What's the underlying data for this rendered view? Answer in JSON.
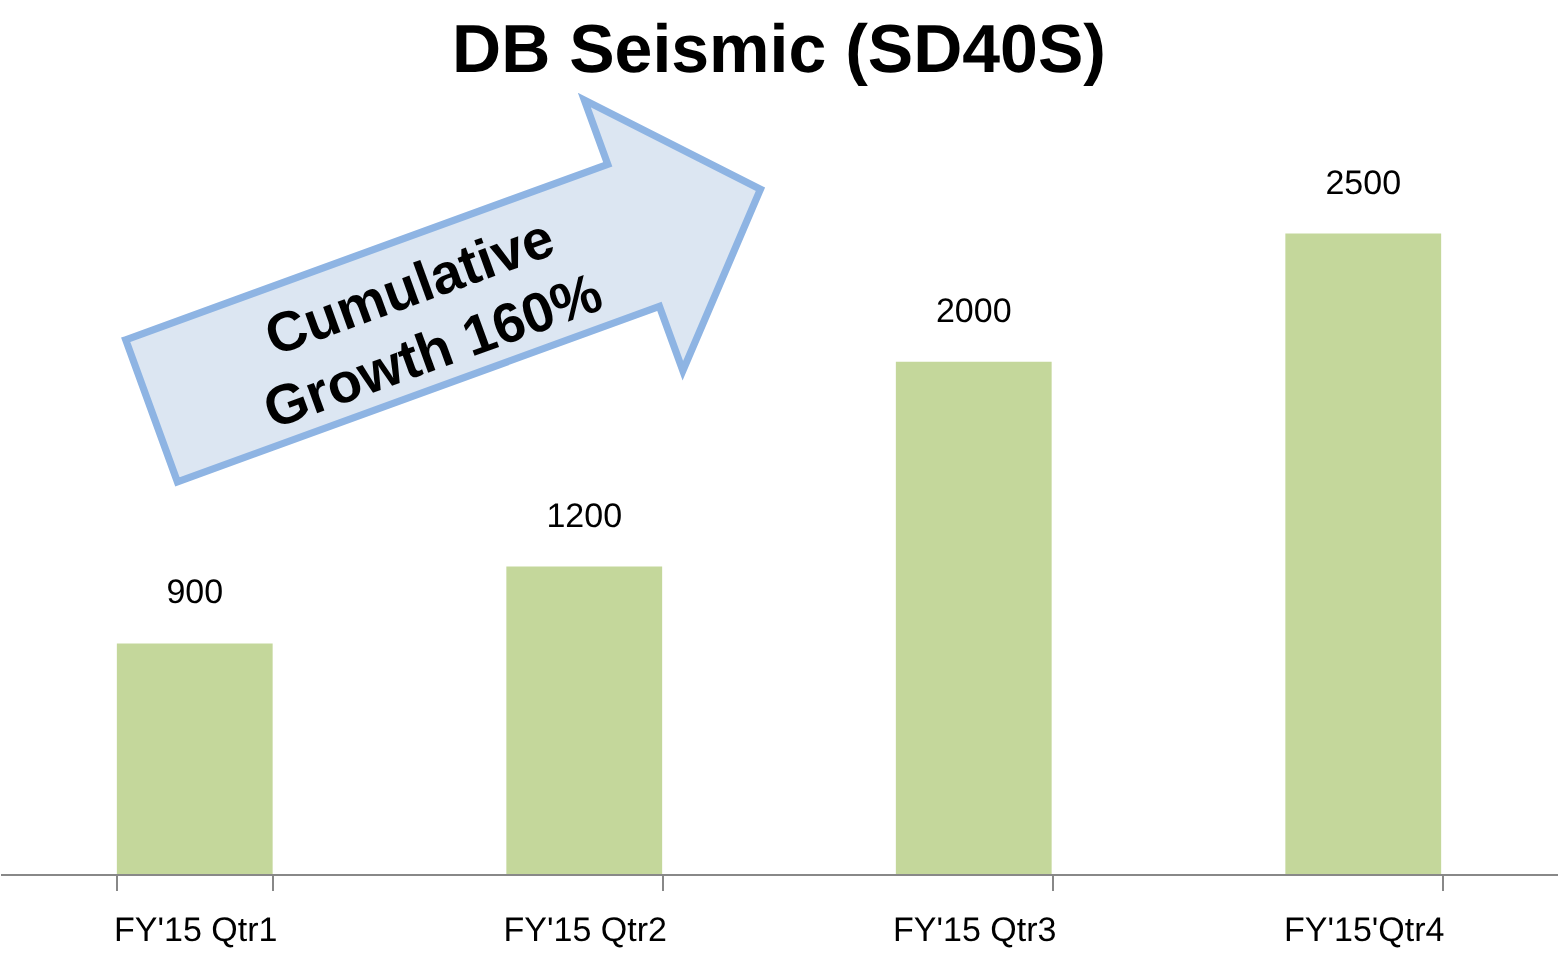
{
  "chart_data": {
    "type": "bar",
    "title": "DB Seismic (SD40S)",
    "categories": [
      "FY'15 Qtr1",
      "FY'15 Qtr2",
      "FY'15 Qtr3",
      "FY'15'Qtr4"
    ],
    "values": [
      900,
      1200,
      2000,
      2500
    ],
    "color": "#c4d79b",
    "data_labels": true,
    "annotations": [
      "Cumulative Growth  160%"
    ]
  }
}
